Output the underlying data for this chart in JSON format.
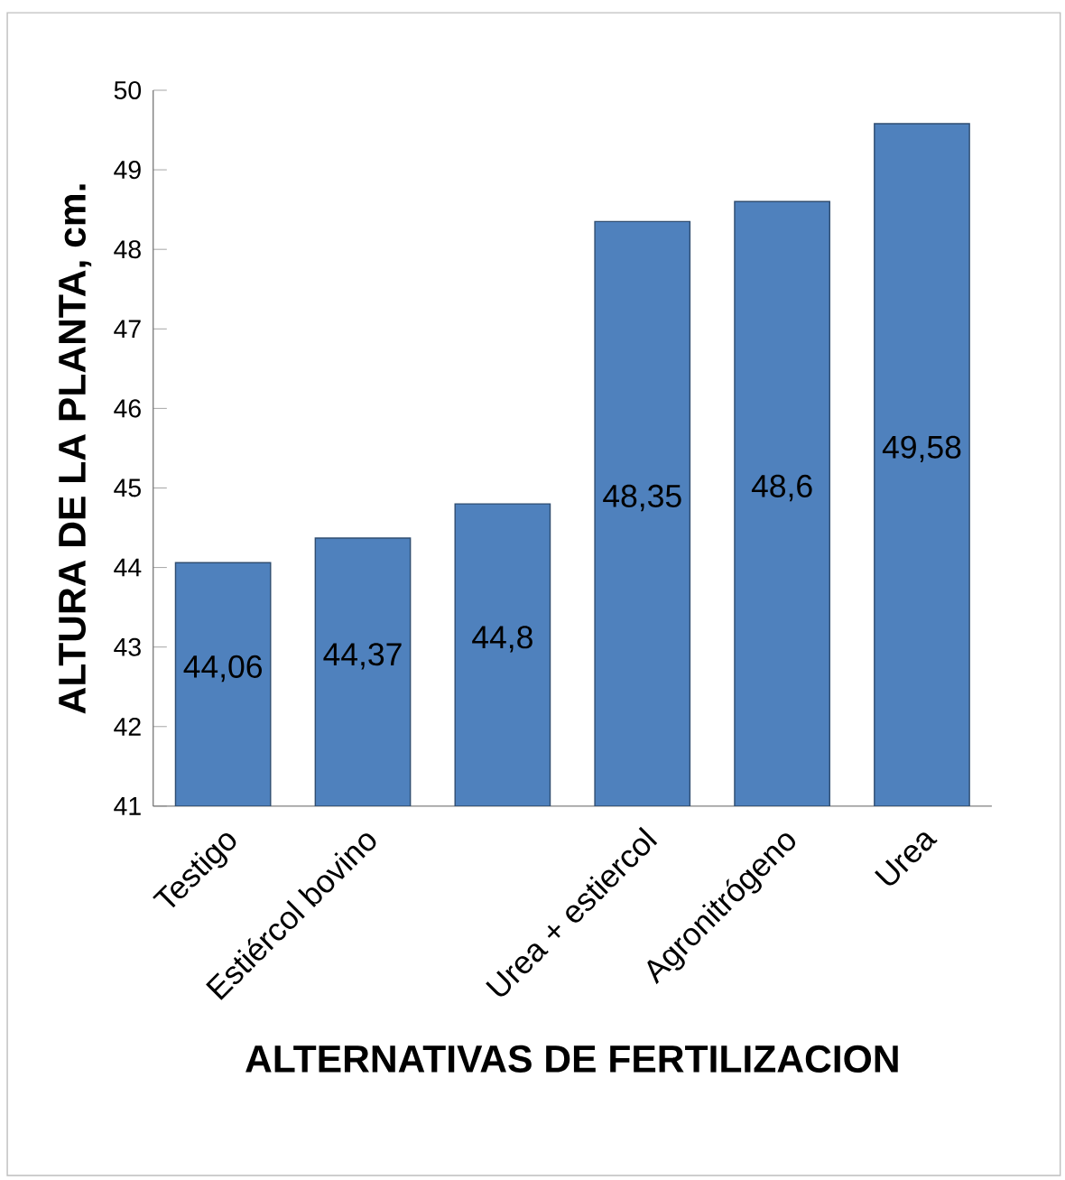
{
  "chart_data": {
    "type": "bar",
    "xlabel": "ALTERNATIVAS DE FERTILIZACION",
    "ylabel": "ALTURA DE LA PLANTA, cm.",
    "categories": [
      "Testigo",
      "Estiércol bovino",
      null,
      "Urea + estiercol",
      "Agronitrógeno",
      "Urea"
    ],
    "values": [
      44.06,
      44.37,
      44.8,
      48.35,
      48.6,
      49.58
    ],
    "value_labels": [
      "44,06",
      "44,37",
      "44,8",
      "48,35",
      "48,6",
      "49,58"
    ],
    "color": "#4f81bd",
    "ylim": [
      41,
      50
    ],
    "yticks": [
      41,
      42,
      43,
      44,
      45,
      46,
      47,
      48,
      49,
      50
    ],
    "grid": false
  }
}
